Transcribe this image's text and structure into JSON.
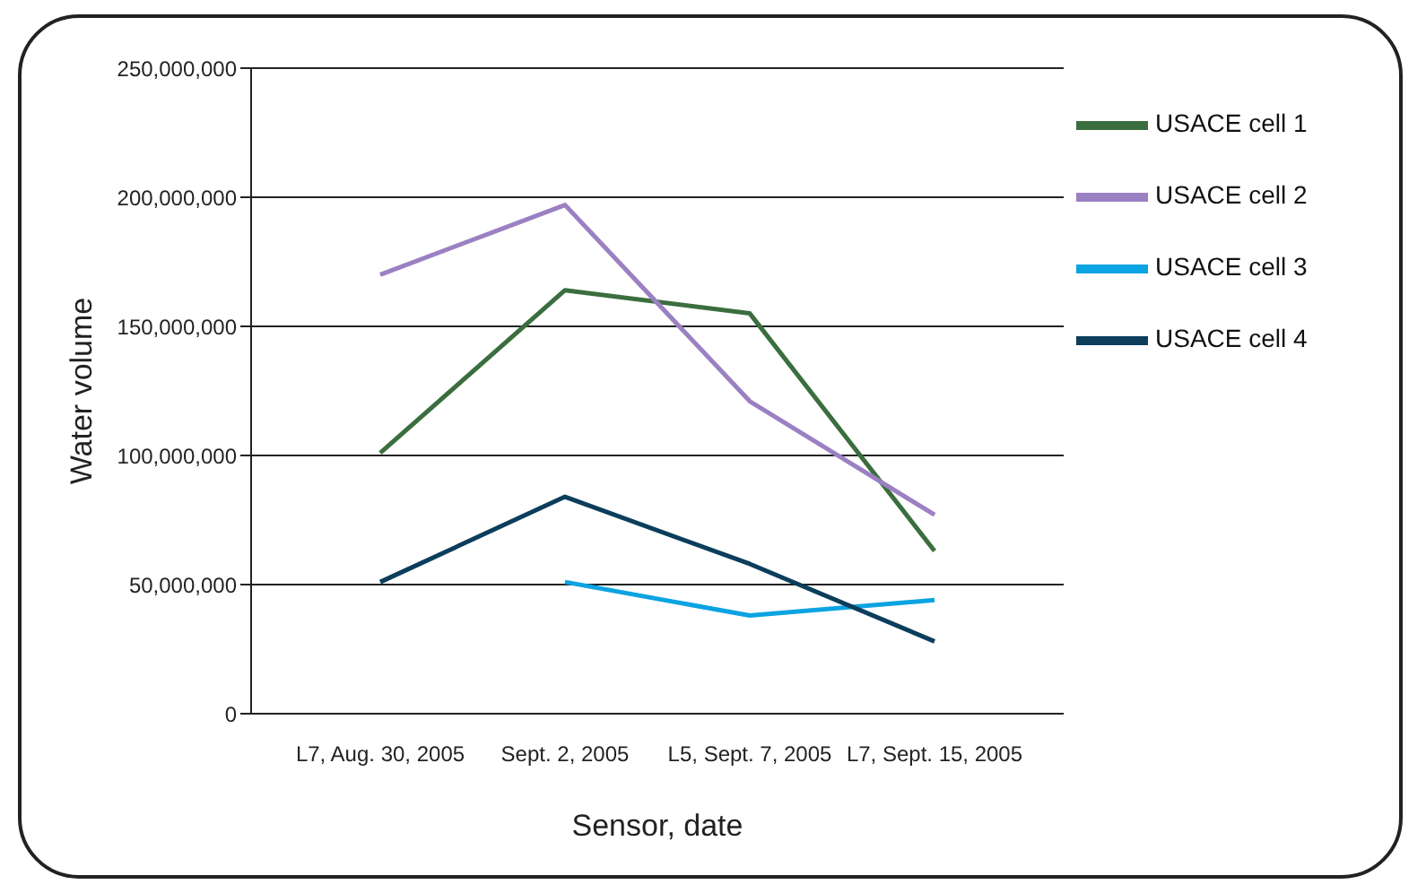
{
  "chart_data": {
    "type": "line",
    "xlabel": "Sensor, date",
    "ylabel": "Water volume",
    "categories": [
      "L7, Aug. 30, 2005",
      "Sept. 2, 2005",
      "L5, Sept. 7, 2005",
      "L7, Sept. 15, 2005"
    ],
    "series": [
      {
        "name": "USACE cell 1",
        "color": "#3b6e3f",
        "values": [
          101000000,
          164000000,
          155000000,
          63000000
        ]
      },
      {
        "name": "USACE cell 2",
        "color": "#9b80c2",
        "values": [
          170000000,
          197000000,
          121000000,
          77000000
        ]
      },
      {
        "name": "USACE cell 3",
        "color": "#0ca3e2",
        "values": [
          null,
          51000000,
          38000000,
          44000000
        ]
      },
      {
        "name": "USACE cell 4",
        "color": "#0c3e5c",
        "values": [
          51000000,
          84000000,
          58000000,
          28000000
        ]
      }
    ],
    "ylim": [
      0,
      250000000
    ],
    "yticks": [
      0,
      {
        "value": 50000000,
        "label": "50,000,000"
      },
      {
        "value": 100000000,
        "label": "100,000,000"
      },
      {
        "value": 150000000,
        "label": "150,000,000"
      },
      {
        "value": 200000000,
        "label": "200,000,000"
      },
      {
        "value": 250000000,
        "label": "250,000,000"
      }
    ],
    "grid": "y",
    "legend": "top right",
    "marker": "none",
    "line_style": "solid"
  }
}
